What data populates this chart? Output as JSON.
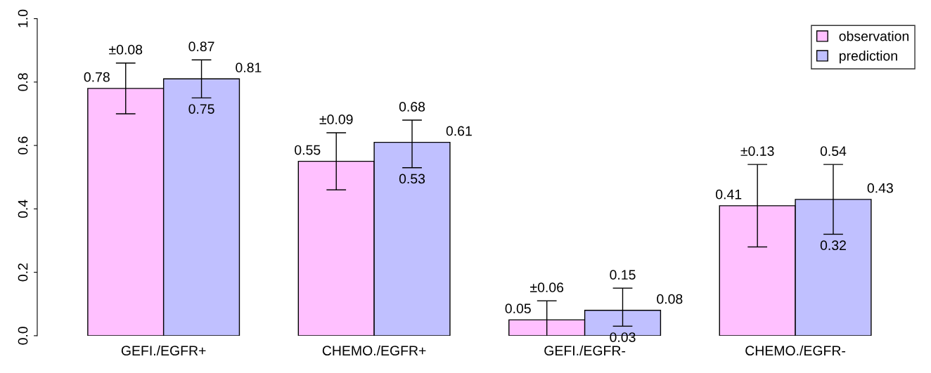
{
  "chart_data": {
    "type": "bar",
    "categories": [
      "GEFI./EGFR+",
      "CHEMO./EGFR+",
      "GEFI./EGFR-",
      "CHEMO./EGFR-"
    ],
    "series": [
      {
        "name": "observation",
        "color": "#ffc0ff",
        "values": [
          0.78,
          0.55,
          0.05,
          0.41
        ],
        "errors": [
          0.08,
          0.09,
          0.06,
          0.13
        ],
        "value_labels": [
          "0.78",
          "0.55",
          "0.05",
          "0.41"
        ]
      },
      {
        "name": "prediction",
        "color": "#c0c0ff",
        "values": [
          0.81,
          0.61,
          0.08,
          0.43
        ],
        "errors": [
          [
            0.75,
            0.87
          ],
          [
            0.53,
            0.68
          ],
          [
            0.03,
            0.15
          ],
          [
            0.32,
            0.54
          ]
        ],
        "value_labels": [
          "0.81",
          "0.61",
          "0.08",
          "0.43"
        ]
      }
    ],
    "annotations": [
      "±0.08",
      "0.87",
      "0.75",
      "±0.09",
      "0.68",
      "0.53",
      "±0.06",
      "0.15",
      "0.03",
      "±0.13",
      "0.54",
      "0.32"
    ],
    "ylim": [
      0,
      1.0
    ],
    "yticks": [
      {
        "value": 0,
        "label": "0.0"
      },
      0.2,
      0.4,
      0.6,
      0.8,
      {
        "value": 1.0,
        "label": "1.0"
      }
    ],
    "grid": false,
    "legend": "top right"
  }
}
